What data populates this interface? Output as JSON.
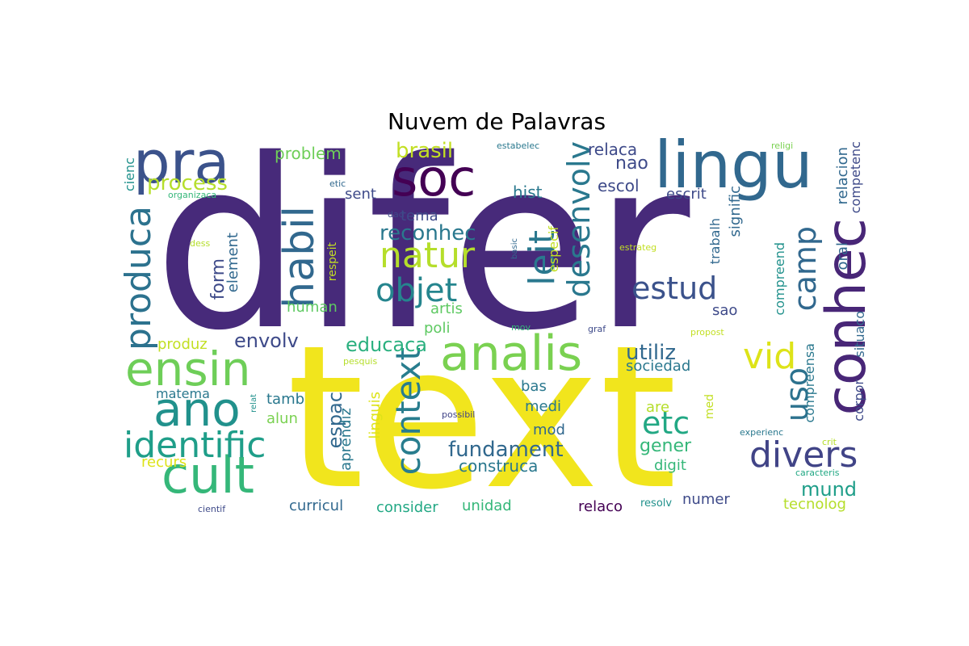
{
  "title": "Nuvem de Palavras",
  "colormap": "viridis",
  "words": [
    {
      "text": "difer",
      "color": "#472a7a"
    },
    {
      "text": "text",
      "color": "#f1e51d"
    },
    {
      "text": "lingu",
      "color": "#31688e"
    },
    {
      "text": "pra",
      "color": "#3b528b"
    },
    {
      "text": "soc",
      "color": "#440154"
    },
    {
      "text": "conhec",
      "color": "#482677"
    },
    {
      "text": "analis",
      "color": "#7ad151"
    },
    {
      "text": "ensin",
      "color": "#6ece58"
    },
    {
      "text": "ano",
      "color": "#21918c"
    },
    {
      "text": "cult",
      "color": "#35b779"
    },
    {
      "text": "habil",
      "color": "#31688e"
    },
    {
      "text": "identific",
      "color": "#1f9e89"
    },
    {
      "text": "natur",
      "color": "#b5de2b"
    },
    {
      "text": "objet",
      "color": "#25858e"
    },
    {
      "text": "produca",
      "color": "#2c728e"
    },
    {
      "text": "context",
      "color": "#287d8e"
    },
    {
      "text": "leit",
      "color": "#2a788e"
    },
    {
      "text": "desenvolv",
      "color": "#2a788e"
    },
    {
      "text": "estud",
      "color": "#3b528b"
    },
    {
      "text": "camp",
      "color": "#31688e"
    },
    {
      "text": "divers",
      "color": "#414487"
    },
    {
      "text": "vid",
      "color": "#dde318"
    },
    {
      "text": "uso",
      "color": "#2c728e"
    },
    {
      "text": "etc",
      "color": "#22a884"
    },
    {
      "text": "process",
      "color": "#b5de2b"
    },
    {
      "text": "brasil",
      "color": "#c2df23"
    },
    {
      "text": "reconhec",
      "color": "#2a788e"
    },
    {
      "text": "fundament",
      "color": "#31688e"
    },
    {
      "text": "utiliz",
      "color": "#31688e"
    },
    {
      "text": "educaca",
      "color": "#2ab07f"
    },
    {
      "text": "envolv",
      "color": "#3e4a89"
    },
    {
      "text": "espac",
      "color": "#31688e"
    },
    {
      "text": "mund",
      "color": "#1f9e89"
    },
    {
      "text": "gener",
      "color": "#35b779"
    },
    {
      "text": "construca",
      "color": "#2a788e"
    },
    {
      "text": "relaca",
      "color": "#3e4a89"
    },
    {
      "text": "nao",
      "color": "#3e4a89"
    },
    {
      "text": "escol",
      "color": "#3e4a89"
    },
    {
      "text": "hist",
      "color": "#2a788e"
    },
    {
      "text": "sent",
      "color": "#3e4a89"
    },
    {
      "text": "tema",
      "color": "#3e4a89"
    },
    {
      "text": "problem",
      "color": "#6ece58"
    },
    {
      "text": "form",
      "color": "#3e4a89"
    },
    {
      "text": "element",
      "color": "#31688e"
    },
    {
      "text": "human",
      "color": "#5ec962"
    },
    {
      "text": "artis",
      "color": "#5ec962"
    },
    {
      "text": "poli",
      "color": "#5ec962"
    },
    {
      "text": "produz",
      "color": "#c2df23"
    },
    {
      "text": "matema",
      "color": "#2a788e"
    },
    {
      "text": "tamb",
      "color": "#2a788e"
    },
    {
      "text": "alun",
      "color": "#7ad151"
    },
    {
      "text": "aprendiz",
      "color": "#2a788e"
    },
    {
      "text": "linguis",
      "color": "#dde318"
    },
    {
      "text": "recurs",
      "color": "#dde318"
    },
    {
      "text": "curricul",
      "color": "#31688e"
    },
    {
      "text": "consider",
      "color": "#22a884"
    },
    {
      "text": "unidad",
      "color": "#35b779"
    },
    {
      "text": "bas",
      "color": "#2a788e"
    },
    {
      "text": "medi",
      "color": "#2a788e"
    },
    {
      "text": "mod",
      "color": "#31688e"
    },
    {
      "text": "are",
      "color": "#b5de2b"
    },
    {
      "text": "digit",
      "color": "#35b779"
    },
    {
      "text": "numer",
      "color": "#3e4a89"
    },
    {
      "text": "relaco",
      "color": "#440154"
    },
    {
      "text": "resolv",
      "color": "#21918c"
    },
    {
      "text": "tecnolog",
      "color": "#b5de2b"
    },
    {
      "text": "escrit",
      "color": "#3e4a89"
    },
    {
      "text": "sociedad",
      "color": "#2a788e"
    },
    {
      "text": "sao",
      "color": "#3e4a89"
    },
    {
      "text": "trabalh",
      "color": "#31688e"
    },
    {
      "text": "signific",
      "color": "#31688e"
    },
    {
      "text": "compreend",
      "color": "#21918c"
    },
    {
      "text": "compreensa",
      "color": "#2a788e"
    },
    {
      "text": "relacion",
      "color": "#31688e"
    },
    {
      "text": "competenc",
      "color": "#3e4a89"
    },
    {
      "text": "oral",
      "color": "#31688e"
    },
    {
      "text": "situaco",
      "color": "#31688e"
    },
    {
      "text": "corpor",
      "color": "#3e4a89"
    },
    {
      "text": "especif",
      "color": "#c2df23"
    },
    {
      "text": "respeit",
      "color": "#c2df23"
    },
    {
      "text": "med",
      "color": "#c2df23"
    },
    {
      "text": "cienc",
      "color": "#21918c"
    },
    {
      "text": "organizaca",
      "color": "#35b779"
    },
    {
      "text": "etic",
      "color": "#31688e"
    },
    {
      "text": "dad",
      "color": "#3e4a89"
    },
    {
      "text": "estabelec",
      "color": "#2a788e"
    },
    {
      "text": "religi",
      "color": "#7ad151"
    },
    {
      "text": "dess",
      "color": "#b5de2b"
    },
    {
      "text": "basic",
      "color": "#31688e"
    },
    {
      "text": "estrateg",
      "color": "#c2df23"
    },
    {
      "text": "mov",
      "color": "#35b779"
    },
    {
      "text": "graf",
      "color": "#3e4a89"
    },
    {
      "text": "propost",
      "color": "#c2df23"
    },
    {
      "text": "pesquis",
      "color": "#b5de2b"
    },
    {
      "text": "possibil",
      "color": "#414487"
    },
    {
      "text": "relat",
      "color": "#21918c"
    },
    {
      "text": "experienc",
      "color": "#2a788e"
    },
    {
      "text": "crit",
      "color": "#b5de2b"
    },
    {
      "text": "caracteris",
      "color": "#22a884"
    },
    {
      "text": "cientif",
      "color": "#3e4a89"
    }
  ]
}
